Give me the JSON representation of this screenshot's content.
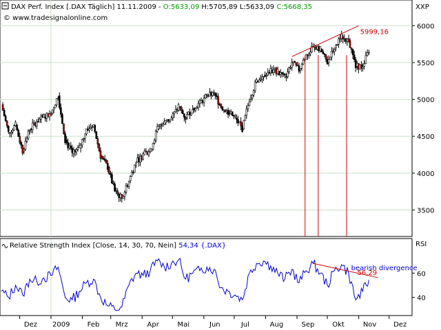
{
  "header": {
    "chart_icon": "minimize-box-icon",
    "title_prefix": "DAX Perf. Index [.DAX  Täglich] 11.11.2009 - ",
    "ohlc": [
      {
        "text": "O:5633,09",
        "color": "#009900"
      },
      {
        "text": "H:5705,89",
        "color": "#000000"
      },
      {
        "text": "L:5633,09",
        "color": "#000000"
      },
      {
        "text": "C:5668,35",
        "color": "#009900"
      }
    ],
    "copyright": "© www.tradesignalonline.com",
    "price_axis_title": "XXP"
  },
  "rsi_header": {
    "icon": "wave-icon",
    "label": "Relative Strength Index [Close, 14, 30, 70, Nein]",
    "value": "54,34",
    "symbol": "{.DAX}",
    "axis_title": "RSI"
  },
  "colors": {
    "up_candle": "#ffffff",
    "down_candle": "#000000",
    "bearish_candle_highlight": "#cc0000",
    "rsi_line": "#0000cc",
    "annotation": "#cc0000",
    "annotation_text_blue": "#0000cc",
    "grid": "#c8e0c8",
    "background": "#ffffff"
  },
  "annotations": {
    "trendline_value": "5999,16",
    "rsi_divergence_label": "bearish divergence",
    "rsi_divergence_value": "56,29"
  },
  "chart_data": [
    {
      "type": "candlestick",
      "title": "DAX Perf. Index",
      "ylim": [
        3150,
        6180
      ],
      "y_ticks": [
        3500,
        4000,
        4500,
        5000,
        5500,
        6000
      ],
      "y_tick_labels": [
        "3500",
        "4000",
        "4500",
        "5000",
        "5500",
        "6000"
      ],
      "x_tick_labels": [
        "Dez",
        "2009",
        "Feb",
        "Mrz",
        "Apr",
        "Mai",
        "Jun",
        "Jul",
        "Aug",
        "Sep",
        "Okt",
        "Nov",
        "Dez"
      ],
      "x_ticks_dates": [
        "2008-12-01",
        "2009-01-01",
        "2009-02-01",
        "2009-03-01",
        "2009-04-01",
        "2009-05-01",
        "2009-06-01",
        "2009-07-01",
        "2009-08-01",
        "2009-09-01",
        "2009-10-01",
        "2009-11-01",
        "2009-12-01"
      ],
      "x_range": [
        "2008-11-13",
        "2009-12-23"
      ],
      "series_close": [
        [
          "2008-11-13",
          4930
        ],
        [
          "2008-11-20",
          4550
        ],
        [
          "2008-11-27",
          4650
        ],
        [
          "2008-12-04",
          4300
        ],
        [
          "2008-12-11",
          4600
        ],
        [
          "2008-12-18",
          4700
        ],
        [
          "2008-12-25",
          4760
        ],
        [
          "2009-01-01",
          4810
        ],
        [
          "2009-01-08",
          5050
        ],
        [
          "2009-01-15",
          4450
        ],
        [
          "2009-01-22",
          4260
        ],
        [
          "2009-01-29",
          4340
        ],
        [
          "2009-02-05",
          4600
        ],
        [
          "2009-02-12",
          4650
        ],
        [
          "2009-02-19",
          4230
        ],
        [
          "2009-02-26",
          4080
        ],
        [
          "2009-03-05",
          3750
        ],
        [
          "2009-03-12",
          3660
        ],
        [
          "2009-03-19",
          3900
        ],
        [
          "2009-03-26",
          4150
        ],
        [
          "2009-04-02",
          4250
        ],
        [
          "2009-04-09",
          4300
        ],
        [
          "2009-04-16",
          4600
        ],
        [
          "2009-04-23",
          4680
        ],
        [
          "2009-04-30",
          4750
        ],
        [
          "2009-05-07",
          4900
        ],
        [
          "2009-05-14",
          4750
        ],
        [
          "2009-05-21",
          4880
        ],
        [
          "2009-05-28",
          4950
        ],
        [
          "2009-06-04",
          5050
        ],
        [
          "2009-06-11",
          5080
        ],
        [
          "2009-06-18",
          4900
        ],
        [
          "2009-06-25",
          4830
        ],
        [
          "2009-07-02",
          4750
        ],
        [
          "2009-07-09",
          4600
        ],
        [
          "2009-07-16",
          5000
        ],
        [
          "2009-07-23",
          5250
        ],
        [
          "2009-07-30",
          5330
        ],
        [
          "2009-08-06",
          5400
        ],
        [
          "2009-08-13",
          5380
        ],
        [
          "2009-08-20",
          5300
        ],
        [
          "2009-08-27",
          5500
        ],
        [
          "2009-09-03",
          5400
        ],
        [
          "2009-09-10",
          5600
        ],
        [
          "2009-09-17",
          5700
        ],
        [
          "2009-09-24",
          5680
        ],
        [
          "2009-10-01",
          5500
        ],
        [
          "2009-10-08",
          5700
        ],
        [
          "2009-10-15",
          5850
        ],
        [
          "2009-10-22",
          5800
        ],
        [
          "2009-10-29",
          5450
        ],
        [
          "2009-11-05",
          5450
        ],
        [
          "2009-11-11",
          5668
        ]
      ],
      "annotations": [
        {
          "kind": "trendline",
          "from": [
            "2009-08-27",
            5580
          ],
          "to": [
            "2009-11-01",
            5999.16
          ],
          "label": "5999,16"
        }
      ]
    },
    {
      "type": "line",
      "title": "Relative Strength Index [Close, 14, 30, 70, Nein]",
      "ylim": [
        25,
        80
      ],
      "y_ticks": [
        40,
        60
      ],
      "y_tick_labels": [
        "40",
        "60"
      ],
      "series": [
        {
          "name": "RSI",
          "points": [
            [
              "2008-11-13",
              45
            ],
            [
              "2008-11-20",
              40
            ],
            [
              "2008-11-27",
              50
            ],
            [
              "2008-12-04",
              42
            ],
            [
              "2008-12-11",
              55
            ],
            [
              "2008-12-18",
              53
            ],
            [
              "2008-12-25",
              56
            ],
            [
              "2009-01-01",
              58
            ],
            [
              "2009-01-08",
              65
            ],
            [
              "2009-01-15",
              40
            ],
            [
              "2009-01-22",
              38
            ],
            [
              "2009-01-29",
              45
            ],
            [
              "2009-02-05",
              52
            ],
            [
              "2009-02-12",
              55
            ],
            [
              "2009-02-19",
              40
            ],
            [
              "2009-02-26",
              33
            ],
            [
              "2009-03-05",
              30
            ],
            [
              "2009-03-12",
              32
            ],
            [
              "2009-03-19",
              50
            ],
            [
              "2009-03-26",
              60
            ],
            [
              "2009-04-02",
              58
            ],
            [
              "2009-04-09",
              62
            ],
            [
              "2009-04-16",
              70
            ],
            [
              "2009-04-23",
              65
            ],
            [
              "2009-04-30",
              68
            ],
            [
              "2009-05-07",
              71
            ],
            [
              "2009-05-14",
              55
            ],
            [
              "2009-05-21",
              60
            ],
            [
              "2009-05-28",
              62
            ],
            [
              "2009-06-04",
              65
            ],
            [
              "2009-06-11",
              63
            ],
            [
              "2009-06-18",
              48
            ],
            [
              "2009-06-25",
              45
            ],
            [
              "2009-07-02",
              42
            ],
            [
              "2009-07-09",
              38
            ],
            [
              "2009-07-16",
              60
            ],
            [
              "2009-07-23",
              68
            ],
            [
              "2009-07-30",
              70
            ],
            [
              "2009-08-06",
              66
            ],
            [
              "2009-08-13",
              60
            ],
            [
              "2009-08-20",
              55
            ],
            [
              "2009-08-27",
              63
            ],
            [
              "2009-09-03",
              52
            ],
            [
              "2009-09-10",
              62
            ],
            [
              "2009-09-17",
              68
            ],
            [
              "2009-09-24",
              60
            ],
            [
              "2009-10-01",
              50
            ],
            [
              "2009-10-08",
              62
            ],
            [
              "2009-10-15",
              67
            ],
            [
              "2009-10-22",
              60
            ],
            [
              "2009-10-29",
              38
            ],
            [
              "2009-11-05",
              45
            ],
            [
              "2009-11-11",
              54.34
            ]
          ]
        }
      ],
      "annotations": [
        {
          "kind": "trendline",
          "from": [
            "2009-09-17",
            68
          ],
          "to": [
            "2009-11-20",
            56.29
          ],
          "label": "56,29"
        },
        {
          "kind": "text",
          "at": [
            "2009-10-15",
            68
          ],
          "label": "bearish divergence"
        }
      ]
    }
  ]
}
